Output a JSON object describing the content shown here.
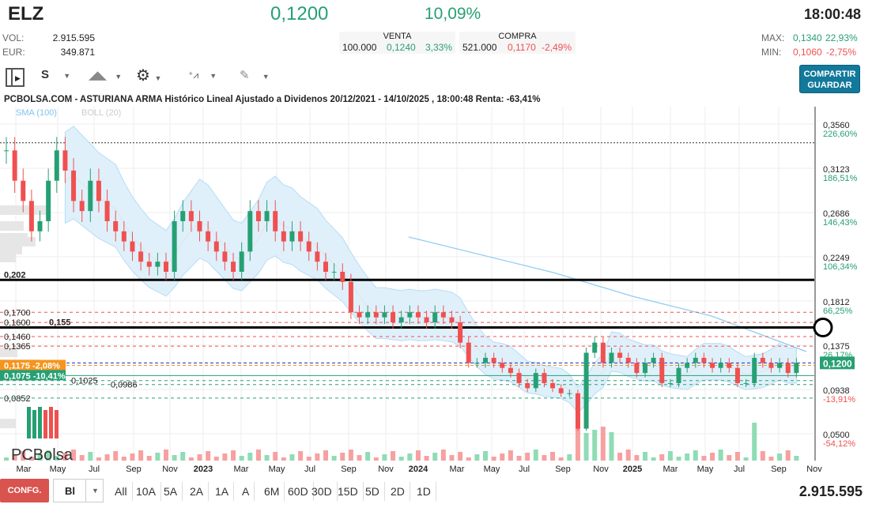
{
  "header": {
    "ticker": "ELZ",
    "price": "0,1200",
    "change_pct": "10,09%",
    "time": "18:00:48",
    "vol_label": "VOL:",
    "vol": "2.915.595",
    "eur_label": "EUR:",
    "eur": "349.871",
    "venta": {
      "label": "VENTA",
      "qty": "100.000",
      "price": "0,1240",
      "pct": "3,33%"
    },
    "compra": {
      "label": "COMPRA",
      "qty": "521.000",
      "price": "0,1170",
      "pct": "-2,49%"
    },
    "max_label": "MAX:",
    "max": "0,1340",
    "max_pct": "22,93%",
    "min_label": "MIN:",
    "min": "0,1060",
    "min_pct": "-2,75%",
    "share_button": "COMPARTIR",
    "save_button": "GUARDAR"
  },
  "toolbar": {
    "period": "S"
  },
  "chart_data": {
    "type": "candlestick",
    "title": "PCBOLSA.COM - ASTURIANA ARMA Histórico Lineal Ajustado a Dividenos 20/12/2021 - 14/10/2025 , 18:00:48 Renta: -63,41%",
    "legend": [
      "SMA (100)",
      "BOLL (20)"
    ],
    "y_ticks": [
      {
        "v": 0.356,
        "l": "0,3560",
        "p": "226,60%"
      },
      {
        "v": 0.3123,
        "l": "0,3123",
        "p": "186,51%"
      },
      {
        "v": 0.2686,
        "l": "0,2686",
        "p": "146,43%"
      },
      {
        "v": 0.2249,
        "l": "0,2249",
        "p": "106,34%"
      },
      {
        "v": 0.1812,
        "l": "0,1812",
        "p": "66,25%"
      },
      {
        "v": 0.1375,
        "l": "0,1375",
        "p": "26,17%"
      },
      {
        "v": 0.0938,
        "l": "0,0938",
        "p": "-13,91%"
      },
      {
        "v": 0.05,
        "l": "0,0500",
        "p": "-54,12%"
      }
    ],
    "last_price_label": "0,1200",
    "x_labels": [
      "Mar",
      "May",
      "Jul",
      "Sep",
      "Nov",
      "2023",
      "Mar",
      "May",
      "Jul",
      "Sep",
      "Nov",
      "2024",
      "Mar",
      "May",
      "Jul",
      "Sep",
      "Nov",
      "2025",
      "Mar",
      "May",
      "Jul",
      "Sep",
      "Nov"
    ],
    "closes": [
      0.33,
      0.3,
      0.28,
      0.25,
      0.26,
      0.3,
      0.33,
      0.31,
      0.28,
      0.27,
      0.3,
      0.28,
      0.26,
      0.25,
      0.24,
      0.23,
      0.22,
      0.215,
      0.22,
      0.21,
      0.26,
      0.27,
      0.26,
      0.25,
      0.24,
      0.23,
      0.22,
      0.21,
      0.23,
      0.27,
      0.26,
      0.27,
      0.25,
      0.24,
      0.25,
      0.24,
      0.23,
      0.22,
      0.21,
      0.21,
      0.2,
      0.17,
      0.165,
      0.17,
      0.165,
      0.17,
      0.16,
      0.165,
      0.17,
      0.165,
      0.16,
      0.17,
      0.165,
      0.16,
      0.14,
      0.12,
      0.12,
      0.125,
      0.12,
      0.115,
      0.11,
      0.1,
      0.095,
      0.11,
      0.1,
      0.095,
      0.09,
      0.09,
      0.055,
      0.13,
      0.14,
      0.12,
      0.13,
      0.125,
      0.12,
      0.11,
      0.12,
      0.125,
      0.1,
      0.1,
      0.115,
      0.12,
      0.125,
      0.12,
      0.115,
      0.12,
      0.115,
      0.1,
      0.1,
      0.125,
      0.12,
      0.115,
      0.12,
      0.11,
      0.12
    ],
    "levels": [
      {
        "v": 0.202,
        "label": "0,202",
        "style": "thick"
      },
      {
        "v": 0.155,
        "label": "0,155",
        "style": "thick"
      },
      {
        "v": 0.17,
        "label": "0,1700",
        "style": "red"
      },
      {
        "v": 0.16,
        "label": "0,1600",
        "style": "red"
      },
      {
        "v": 0.146,
        "label": "0,1460",
        "style": "red"
      },
      {
        "v": 0.1365,
        "label": "0,1365",
        "style": "red"
      },
      {
        "v": 0.1025,
        "label": "0,1025",
        "style": "green"
      },
      {
        "v": 0.0986,
        "label": "0,0986",
        "style": "green"
      },
      {
        "v": 0.0852,
        "label": "0,0852",
        "style": "green"
      }
    ],
    "markers": [
      {
        "v": 0.1175,
        "label": "0,1175  -2,08%",
        "color": "#f7941d"
      },
      {
        "v": 0.1075,
        "label": "0,1075  -10,41%",
        "color": "#26a073"
      }
    ],
    "watermark": "PCBolsa"
  },
  "footer": {
    "config": "CONFG.",
    "chart_type": "Bl",
    "ranges": [
      "All",
      "10A",
      "5A",
      "2A",
      "1A",
      "A",
      "6M",
      "60D",
      "30D",
      "15D",
      "5D",
      "2D",
      "1D"
    ],
    "total_volume": "2.915.595"
  }
}
